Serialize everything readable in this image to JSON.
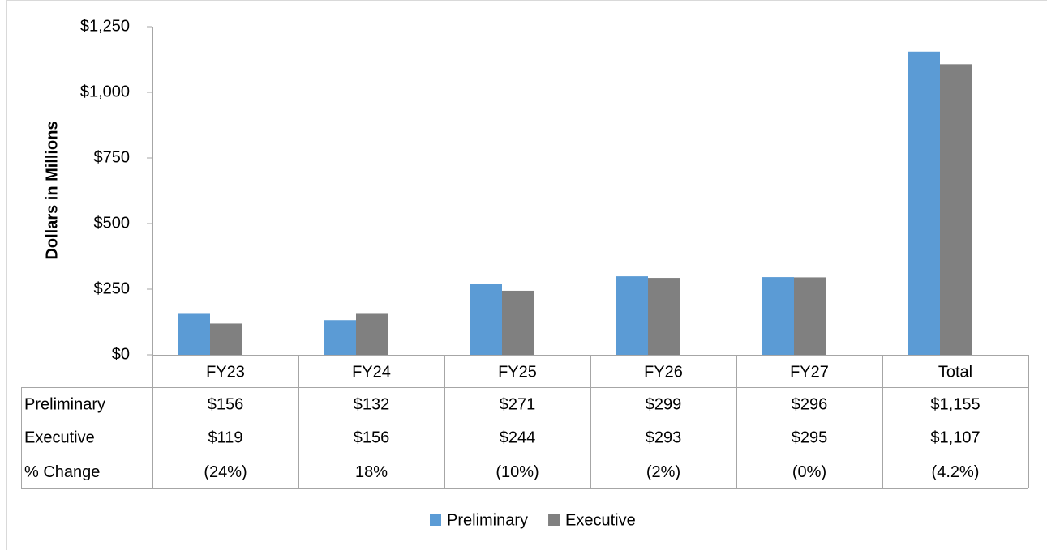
{
  "chart_data": {
    "type": "bar",
    "y_axis_label": "Dollars in Millions",
    "categories": [
      "FY23",
      "FY24",
      "FY25",
      "FY26",
      "FY27",
      "Total"
    ],
    "series": [
      {
        "name": "Preliminary",
        "color": "#5b9bd5",
        "values": [
          156,
          132,
          271,
          299,
          296,
          1155
        ],
        "value_labels": [
          "$156",
          "$132",
          "$271",
          "$299",
          "$296",
          "$1,155"
        ]
      },
      {
        "name": "Executive",
        "color": "#808080",
        "values": [
          119,
          156,
          244,
          293,
          295,
          1107
        ],
        "value_labels": [
          "$119",
          "$156",
          "$244",
          "$293",
          "$295",
          "$1,107"
        ]
      }
    ],
    "change_row": {
      "name": "% Change",
      "labels": [
        "(24%)",
        "18%",
        "(10%)",
        "(2%)",
        "(0%)",
        "(4.2%)"
      ]
    },
    "ylim": [
      0,
      1250
    ],
    "yticks": [
      {
        "value": 0,
        "label": "$0"
      },
      {
        "value": 250,
        "label": "$250"
      },
      {
        "value": 500,
        "label": "$500"
      },
      {
        "value": 750,
        "label": "$750"
      },
      {
        "value": 1000,
        "label": "$1,000"
      },
      {
        "value": 1250,
        "label": "$1,250"
      }
    ],
    "grid": false,
    "legend": "bottom"
  }
}
